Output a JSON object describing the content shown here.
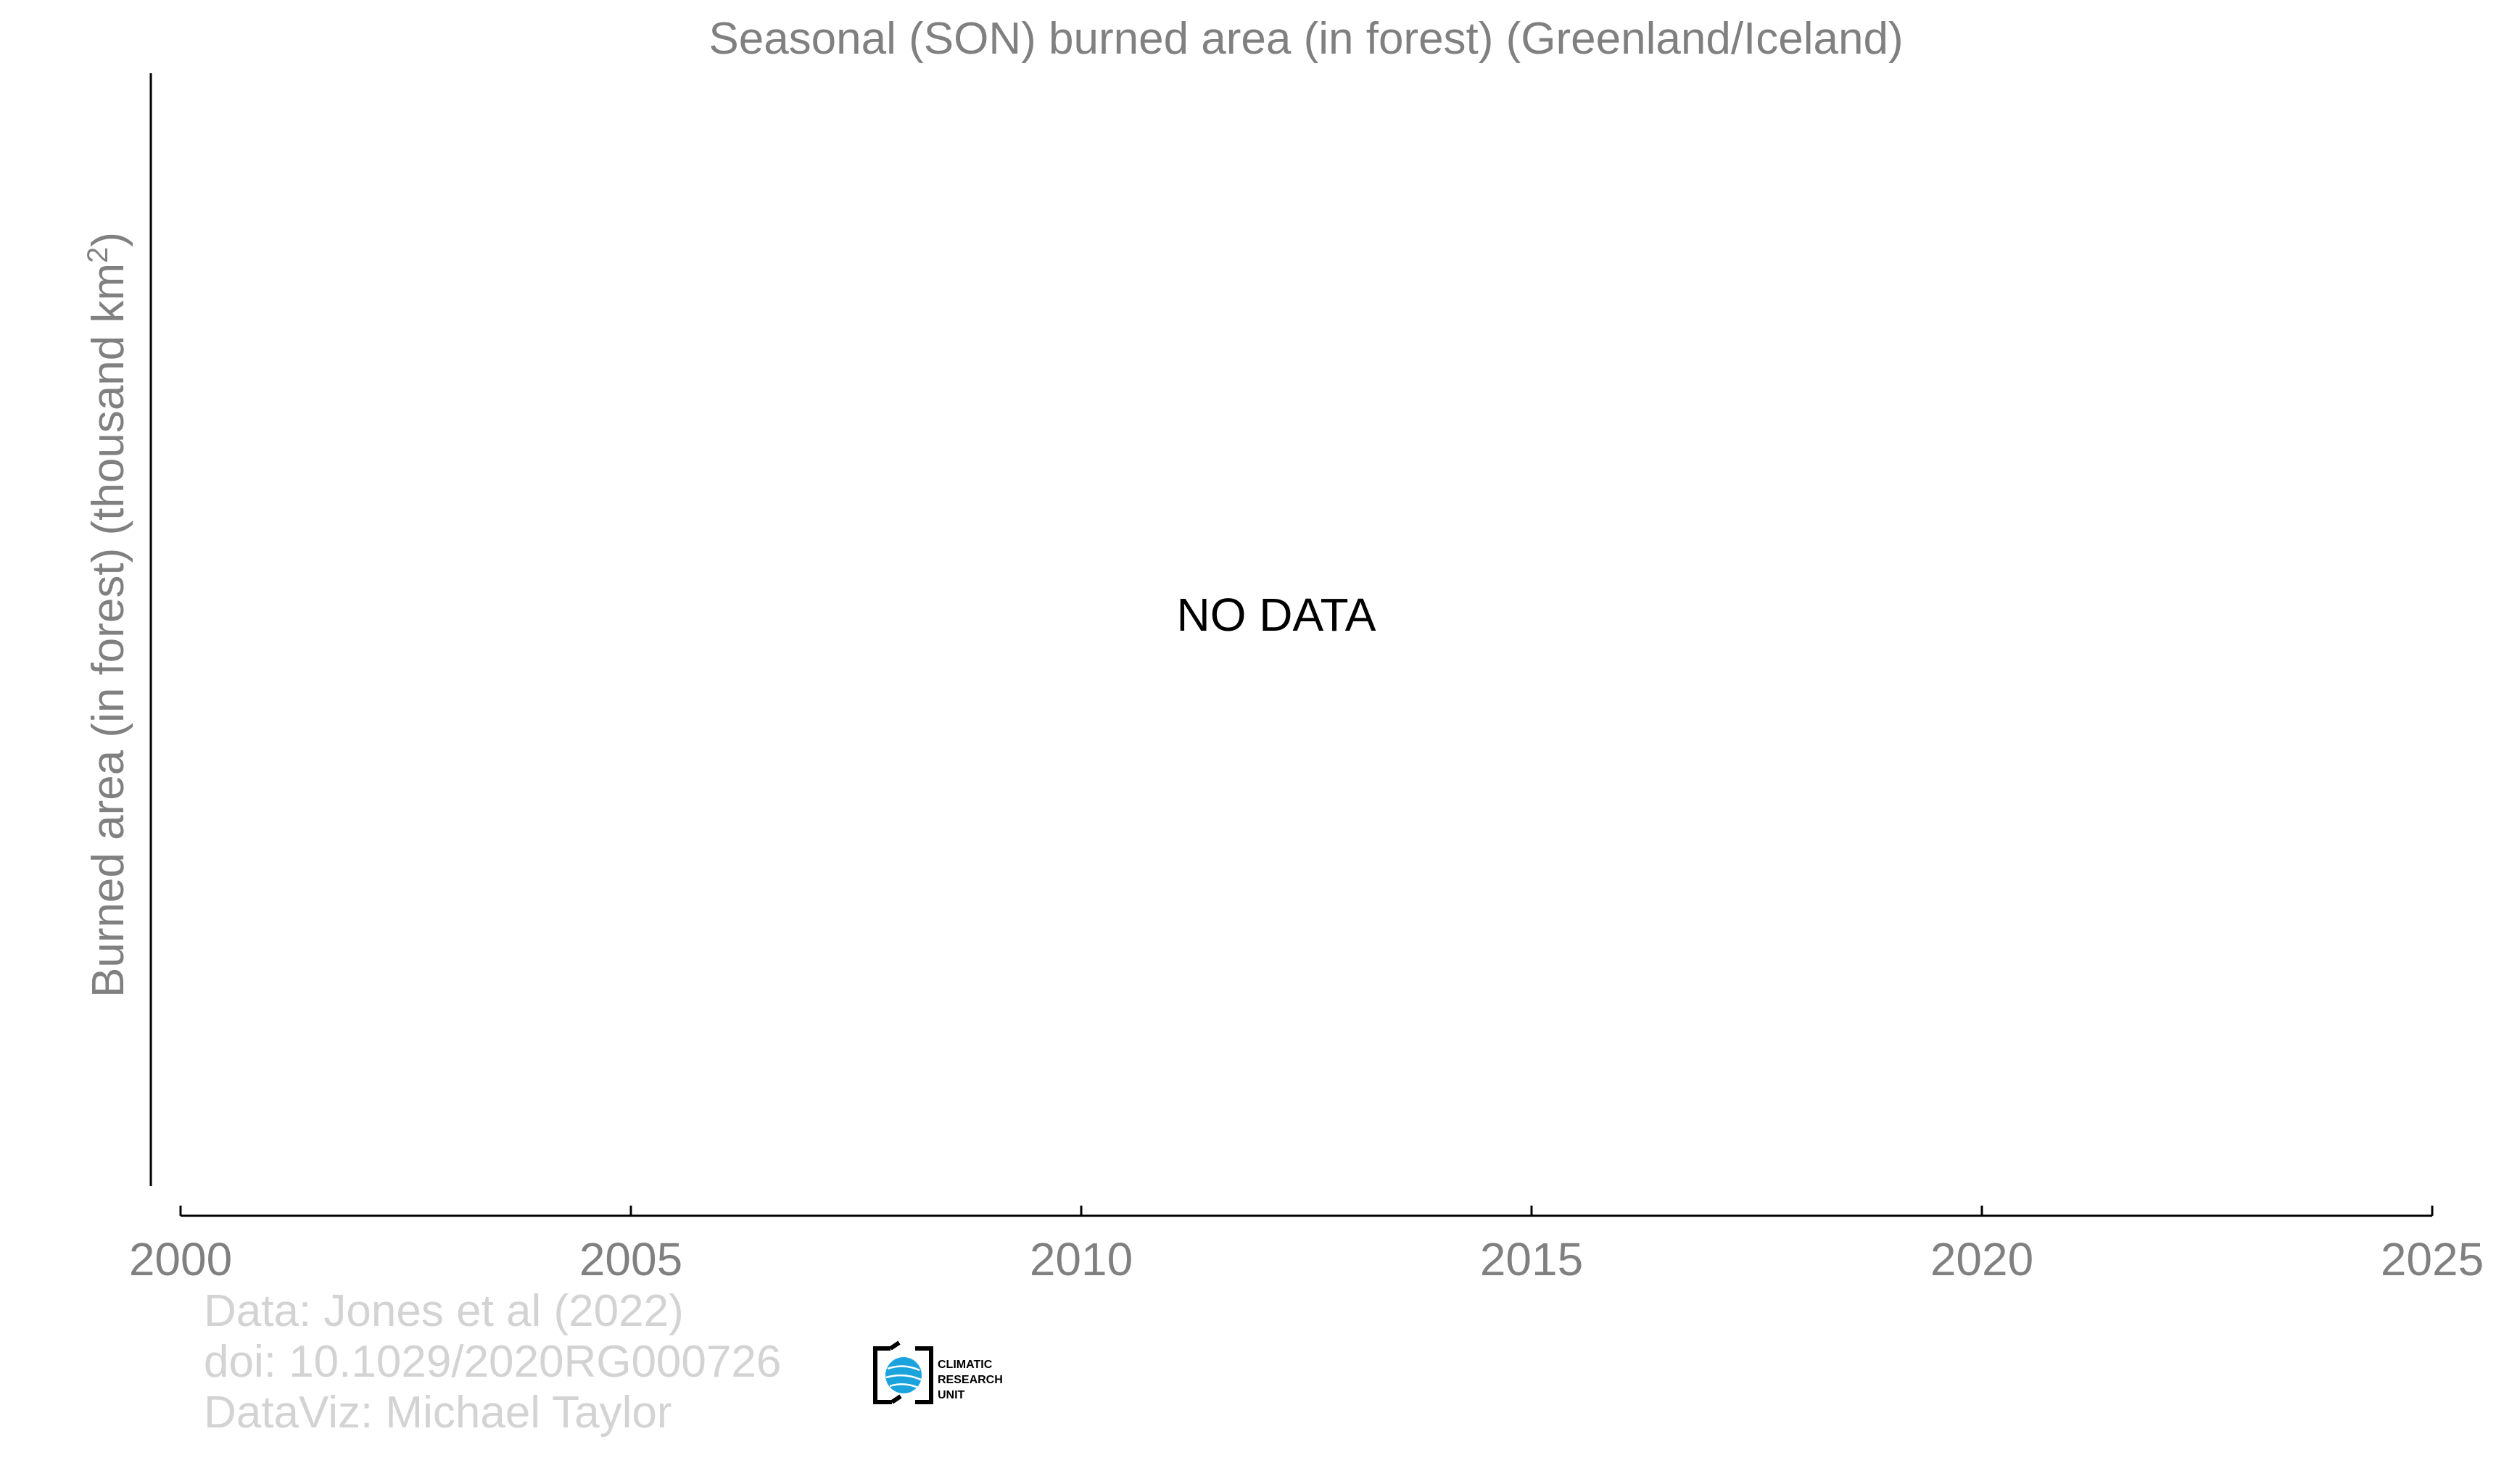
{
  "chart_data": {
    "type": "line",
    "title": "Seasonal (SON) burned area (in forest) (Greenland/Iceland)",
    "xlabel": "",
    "ylabel_main": "Burned area (in forest) (thousand km",
    "ylabel_sup": "2",
    "ylabel_close": ")",
    "xlim": [
      2000,
      2025
    ],
    "xticks": [
      2000,
      2005,
      2010,
      2015,
      2020,
      2025
    ],
    "xtick_labels": [
      "2000",
      "2005",
      "2010",
      "2015",
      "2020",
      "2025"
    ],
    "series": [],
    "annotation": "NO DATA",
    "grid": false
  },
  "credits": {
    "line1": "Data: Jones et al (2022)",
    "line2": "doi: 10.1029/2020RG000726",
    "line3": "DataViz: Michael Taylor"
  },
  "logo": {
    "line1": "CLIMATIC",
    "line2": "RESEARCH",
    "line3": "UNIT",
    "icon": "globe-icon"
  },
  "colors": {
    "title": "#808080",
    "axis_label": "#808080",
    "tick_label": "#808080",
    "axis_line": "#000000",
    "annotation": "#000000",
    "credits": "#d3d3d3",
    "logo_globe": "#1aa3dc"
  }
}
